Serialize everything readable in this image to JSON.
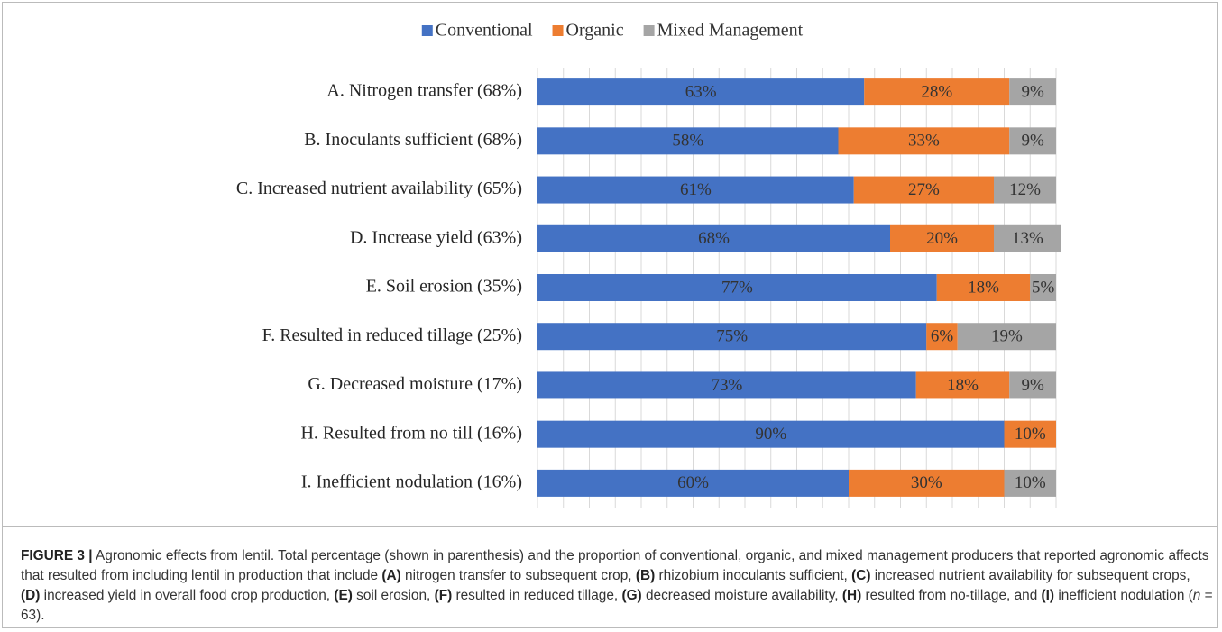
{
  "chart_data": {
    "type": "stacked_barh",
    "categories": [
      "A. Nitrogen transfer (68%)",
      "B. Inoculants sufficient (68%)",
      "C. Increased nutrient availability (65%)",
      "D. Increase yield (63%)",
      "E. Soil erosion (35%)",
      "F. Resulted in reduced tillage (25%)",
      "G. Decreased moisture (17%)",
      "H. Resulted from no till (16%)",
      "I. Inefficient nodulation (16%)"
    ],
    "series": [
      {
        "name": "Conventional",
        "color": "#4472c4",
        "values": [
          63,
          58,
          61,
          68,
          77,
          75,
          73,
          90,
          60
        ],
        "value_labels": [
          "63%",
          "58%",
          "61%",
          "68%",
          "77%",
          "75%",
          "73%",
          "90%",
          "60%"
        ]
      },
      {
        "name": "Organic",
        "color": "#ed7d31",
        "values": [
          28,
          33,
          27,
          20,
          18,
          6,
          18,
          10,
          30
        ],
        "value_labels": [
          "28%",
          "33%",
          "27%",
          "20%",
          "18%",
          "6%",
          "18%",
          "10%",
          "30%"
        ]
      },
      {
        "name": "Mixed Management",
        "color": "#a5a5a5",
        "values": [
          9,
          9,
          12,
          13,
          5,
          19,
          9,
          null,
          10
        ],
        "value_labels": [
          "9%",
          "9%",
          "12%",
          "13%",
          "5%",
          "19%",
          "9%",
          null,
          "10%"
        ]
      }
    ],
    "xlim": [
      0,
      100
    ],
    "xticks": [
      0,
      5,
      10,
      15,
      20,
      25,
      30,
      35,
      40,
      45,
      50,
      55,
      60,
      65,
      70,
      75,
      80,
      85,
      90,
      95,
      100
    ],
    "grid": true,
    "legend": "top",
    "caption": [
      {
        "text": "FIGURE 3 |",
        "style": "bold"
      },
      {
        "text": " Agronomic effects from lentil. Total percentage (shown in parenthesis) and the proportion of conventional, organic, and mixed management producers that reported agronomic affects that resulted from including lentil in production that include ",
        "style": "normal"
      },
      {
        "text": "(A)",
        "style": "bold"
      },
      {
        "text": " nitrogen transfer to subsequent crop, ",
        "style": "normal"
      },
      {
        "text": "(B)",
        "style": "bold"
      },
      {
        "text": " rhizobium inoculants sufficient, ",
        "style": "normal"
      },
      {
        "text": "(C)",
        "style": "bold"
      },
      {
        "text": " increased nutrient availability for subsequent crops, ",
        "style": "normal"
      },
      {
        "text": "(D)",
        "style": "bold"
      },
      {
        "text": " increased yield in overall food crop production, ",
        "style": "normal"
      },
      {
        "text": "(E)",
        "style": "bold"
      },
      {
        "text": " soil erosion, ",
        "style": "normal"
      },
      {
        "text": "(F)",
        "style": "bold"
      },
      {
        "text": " resulted in reduced tillage, ",
        "style": "normal"
      },
      {
        "text": "(G)",
        "style": "bold"
      },
      {
        "text": " decreased moisture availability, ",
        "style": "normal"
      },
      {
        "text": "(H)",
        "style": "bold"
      },
      {
        "text": " resulted from no-tillage, and ",
        "style": "normal"
      },
      {
        "text": "(I)",
        "style": "bold"
      },
      {
        "text": " inefficient nodulation (",
        "style": "normal"
      },
      {
        "text": "n",
        "style": "italic"
      },
      {
        "text": " = 63).",
        "style": "normal"
      }
    ]
  }
}
